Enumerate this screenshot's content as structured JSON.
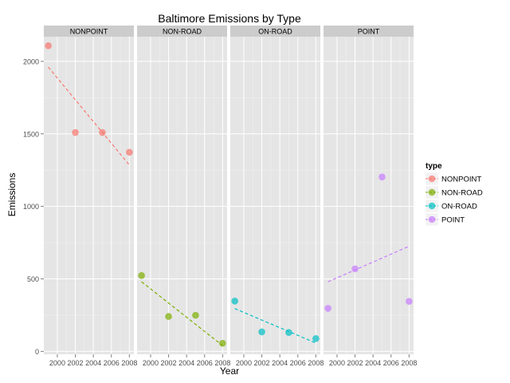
{
  "chart_data": {
    "type": "scatter",
    "title": "Baltimore Emissions by Type",
    "xlabel": "Year",
    "ylabel": "Emissions",
    "x_ticks": [
      2000,
      2002,
      2004,
      2006,
      2008
    ],
    "y_ticks": [
      0,
      500,
      1000,
      1500,
      2000
    ],
    "xlim": [
      1998.5,
      2008.5
    ],
    "ylim": [
      -20,
      2170
    ],
    "grid": true,
    "legend_title": "type",
    "legend_position": "right",
    "panels": [
      {
        "name": "NONPOINT",
        "color": "#f8766d",
        "x": [
          1999,
          2002,
          2005,
          2008
        ],
        "y": [
          2107.6,
          1509.5,
          1509.5,
          1373.2
        ],
        "trend": [
          [
            1999,
            1960
          ],
          [
            2008,
            1285
          ]
        ]
      },
      {
        "name": "NON-ROAD",
        "color": "#7cae00",
        "x": [
          1999,
          2002,
          2005,
          2008
        ],
        "y": [
          522.9,
          240.8,
          248.9,
          55.8
        ],
        "trend": [
          [
            1999,
            480
          ],
          [
            2008,
            40
          ]
        ]
      },
      {
        "name": "ON-ROAD",
        "color": "#00bfc4",
        "x": [
          1999,
          2002,
          2005,
          2008
        ],
        "y": [
          346.8,
          134.3,
          130.4,
          88.3
        ],
        "trend": [
          [
            1999,
            295
          ],
          [
            2008,
            58
          ]
        ]
      },
      {
        "name": "POINT",
        "color": "#c77cff",
        "x": [
          1999,
          2002,
          2005,
          2008
        ],
        "y": [
          296.8,
          569.3,
          1202.5,
          344.98
        ],
        "trend": [
          [
            1999,
            480
          ],
          [
            2008,
            725
          ]
        ]
      }
    ]
  }
}
